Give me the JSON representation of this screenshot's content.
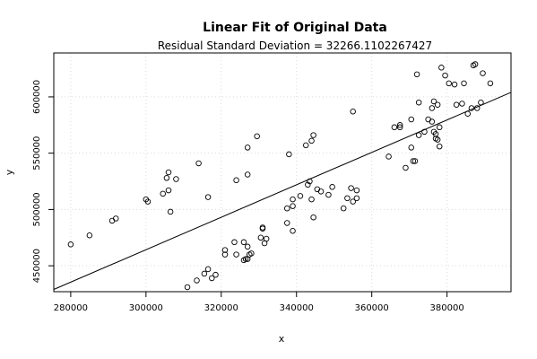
{
  "chart_data": {
    "type": "scatter",
    "title": "Linear Fit of Original Data",
    "subtitle": "Residual Standard Deviation =  32266.1102267427",
    "xlabel": "x",
    "ylabel": "y",
    "xlim": [
      275500,
      397000
    ],
    "ylim": [
      427000,
      639000
    ],
    "xticks": [
      280000,
      300000,
      320000,
      340000,
      360000,
      380000
    ],
    "xtick_labels": [
      "280000",
      "300000",
      "320000",
      "340000",
      "360000",
      "380000"
    ],
    "yticks": [
      450000,
      500000,
      550000,
      600000
    ],
    "ytick_labels": [
      "450000",
      "500000",
      "550000",
      "600000"
    ],
    "grid": true,
    "fit_line": {
      "x": [
        275500,
        397000
      ],
      "y": [
        429000,
        604000
      ]
    },
    "points": [
      [
        280000,
        469000
      ],
      [
        285000,
        477000
      ],
      [
        291000,
        490000
      ],
      [
        292000,
        492000
      ],
      [
        300000,
        509000
      ],
      [
        300500,
        507000
      ],
      [
        304500,
        514000
      ],
      [
        305500,
        528000
      ],
      [
        306000,
        533000
      ],
      [
        306000,
        517000
      ],
      [
        306500,
        498000
      ],
      [
        308000,
        527000
      ],
      [
        311000,
        431000
      ],
      [
        313500,
        437000
      ],
      [
        314000,
        541000
      ],
      [
        315500,
        443000
      ],
      [
        316500,
        447000
      ],
      [
        316500,
        511000
      ],
      [
        317500,
        439000
      ],
      [
        318500,
        442000
      ],
      [
        321000,
        460000
      ],
      [
        321000,
        464000
      ],
      [
        323500,
        471000
      ],
      [
        324000,
        460000
      ],
      [
        324000,
        526000
      ],
      [
        326000,
        471000
      ],
      [
        326000,
        455000
      ],
      [
        326500,
        456000
      ],
      [
        327000,
        456000
      ],
      [
        327000,
        467000
      ],
      [
        327000,
        531000
      ],
      [
        327000,
        555000
      ],
      [
        327500,
        460000
      ],
      [
        328000,
        461000
      ],
      [
        329500,
        565000
      ],
      [
        330500,
        475000
      ],
      [
        331000,
        484000
      ],
      [
        331000,
        483000
      ],
      [
        331500,
        470000
      ],
      [
        332000,
        474000
      ],
      [
        337500,
        501000
      ],
      [
        337500,
        488000
      ],
      [
        338000,
        549000
      ],
      [
        339000,
        481000
      ],
      [
        339000,
        503000
      ],
      [
        339000,
        509000
      ],
      [
        341000,
        512000
      ],
      [
        342500,
        557000
      ],
      [
        343000,
        522000
      ],
      [
        343500,
        525000
      ],
      [
        344000,
        561000
      ],
      [
        344000,
        509000
      ],
      [
        344500,
        566000
      ],
      [
        344500,
        493000
      ],
      [
        345500,
        518000
      ],
      [
        346500,
        516000
      ],
      [
        348500,
        513000
      ],
      [
        349500,
        520000
      ],
      [
        352500,
        501000
      ],
      [
        353500,
        510000
      ],
      [
        354500,
        519000
      ],
      [
        355000,
        507000
      ],
      [
        355000,
        587000
      ],
      [
        356000,
        510000
      ],
      [
        356000,
        517000
      ],
      [
        364500,
        547000
      ],
      [
        366000,
        573000
      ],
      [
        367500,
        573000
      ],
      [
        367500,
        575000
      ],
      [
        369000,
        537000
      ],
      [
        370500,
        555000
      ],
      [
        370500,
        580000
      ],
      [
        371000,
        543000
      ],
      [
        371500,
        543000
      ],
      [
        372000,
        620000
      ],
      [
        372500,
        595000
      ],
      [
        372500,
        566000
      ],
      [
        374000,
        569000
      ],
      [
        375000,
        580000
      ],
      [
        376000,
        578000
      ],
      [
        376000,
        590000
      ],
      [
        376500,
        596000
      ],
      [
        376500,
        569000
      ],
      [
        377000,
        563000
      ],
      [
        377000,
        567000
      ],
      [
        377500,
        593000
      ],
      [
        377500,
        562000
      ],
      [
        378000,
        556000
      ],
      [
        378000,
        573000
      ],
      [
        378500,
        626000
      ],
      [
        379500,
        619000
      ],
      [
        380500,
        612000
      ],
      [
        382000,
        611000
      ],
      [
        382500,
        593000
      ],
      [
        384000,
        594000
      ],
      [
        384500,
        612000
      ],
      [
        385500,
        585000
      ],
      [
        386500,
        590000
      ],
      [
        387000,
        628000
      ],
      [
        387500,
        629000
      ],
      [
        388000,
        590000
      ],
      [
        389000,
        595000
      ],
      [
        389500,
        621000
      ],
      [
        391500,
        612000
      ]
    ]
  }
}
